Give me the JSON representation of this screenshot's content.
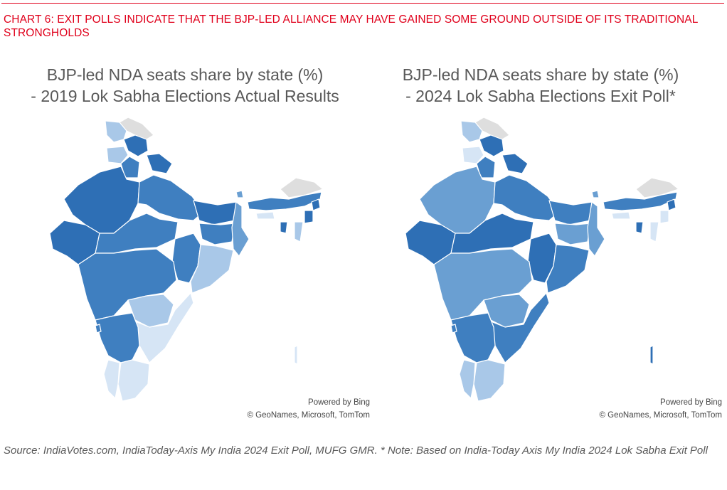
{
  "chart_title": "CHART 6: EXIT POLLS INDICATE THAT THE BJP-LED ALLIANCE MAY HAVE GAINED SOME GROUND OUTSIDE OF ITS TRADITIONAL STRONGHOLDS",
  "maps": [
    {
      "title_line1": "BJP-led NDA seats share by state (%)",
      "title_line2": "- 2019 Lok Sabha Elections Actual Results",
      "credit_line1": "Powered by Bing",
      "credit_line2": "© GeoNames, Microsoft, TomTom"
    },
    {
      "title_line1": "BJP-led NDA seats share by state (%)",
      "title_line2": "- 2024 Lok Sabha Elections Exit Poll*",
      "credit_line1": "Powered by Bing",
      "credit_line2": "© GeoNames, Microsoft, TomTom"
    }
  ],
  "colors": {
    "title_red": "#e0001b",
    "no_data": "#dedede",
    "shade_darkest": "#2e6fb5",
    "shade_dark": "#3f7fc0",
    "shade_mid": "#6a9fd2",
    "shade_light": "#a9c8e8",
    "shade_lightest": "#d6e5f5"
  },
  "source_note": "Source: IndiaVotes.com, IndiaToday-Axis My India 2024 Exit Poll, MUFG GMR.  * Note: Based on India-Today Axis My India 2024 Lok Sabha Exit Poll"
}
